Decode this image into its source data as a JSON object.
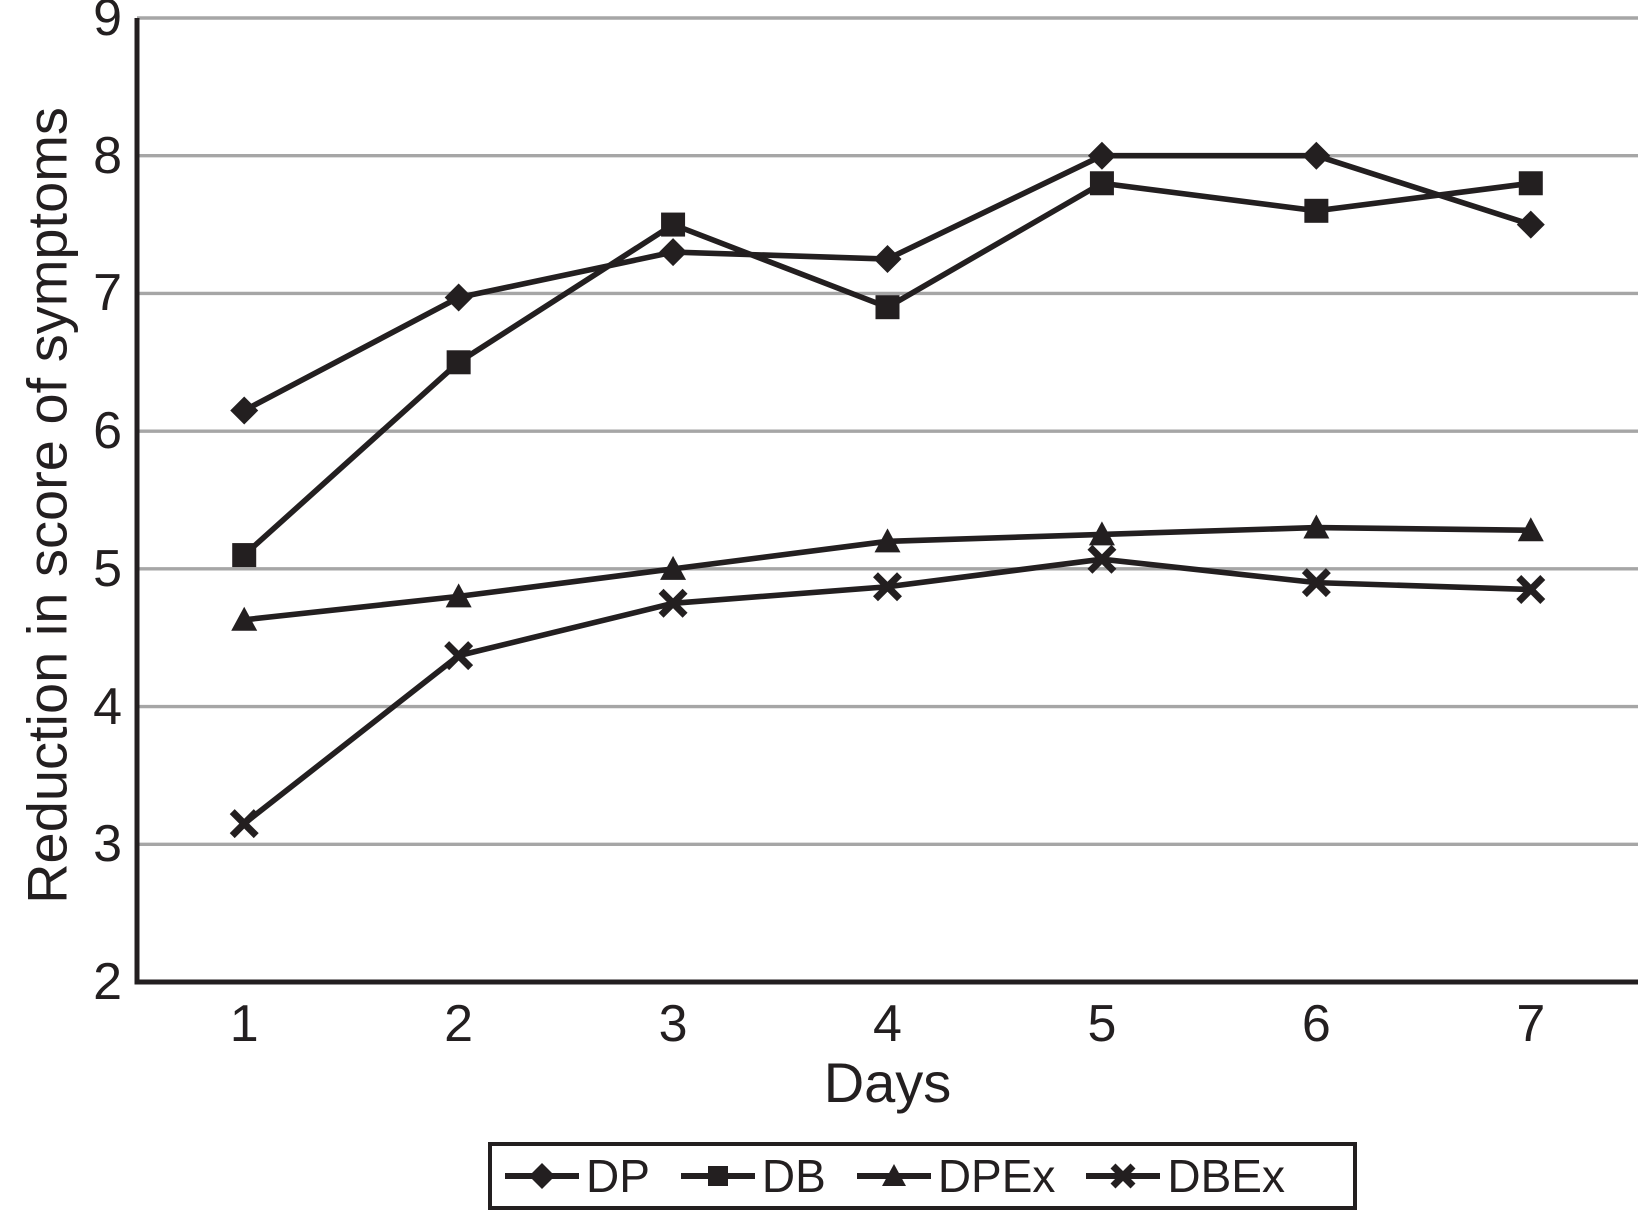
{
  "chart_data": {
    "type": "line",
    "title": "",
    "xlabel": "Days",
    "ylabel": "Reduction in score of symptoms",
    "x": [
      1,
      2,
      3,
      4,
      5,
      6,
      7
    ],
    "xtick_labels": [
      "1",
      "2",
      "3",
      "4",
      "5",
      "6",
      "7"
    ],
    "ytick_labels": [
      "2",
      "3",
      "4",
      "5",
      "6",
      "7",
      "8",
      "9"
    ],
    "yticks": [
      2,
      3,
      4,
      5,
      6,
      7,
      8,
      9
    ],
    "ylim": [
      2,
      9
    ],
    "grid": "horizontal-only",
    "legend_position": "bottom-boxed",
    "series": [
      {
        "name": "DP",
        "marker": "diamond",
        "values": [
          6.15,
          6.97,
          7.3,
          7.25,
          8.0,
          8.0,
          7.5
        ]
      },
      {
        "name": "DB",
        "marker": "square",
        "values": [
          5.1,
          6.5,
          7.5,
          6.9,
          7.8,
          7.6,
          7.8
        ]
      },
      {
        "name": "DPEx",
        "marker": "triangle",
        "values": [
          4.63,
          4.8,
          5.0,
          5.2,
          5.25,
          5.3,
          5.28
        ]
      },
      {
        "name": "DBEx",
        "marker": "x",
        "values": [
          3.15,
          4.37,
          4.75,
          4.87,
          5.07,
          4.9,
          4.85
        ]
      }
    ],
    "colors": {
      "line": "#231f20",
      "marker": "#231f20",
      "grid": "#a6a6a6",
      "axis": "#231f20",
      "background": "#ffffff"
    }
  }
}
